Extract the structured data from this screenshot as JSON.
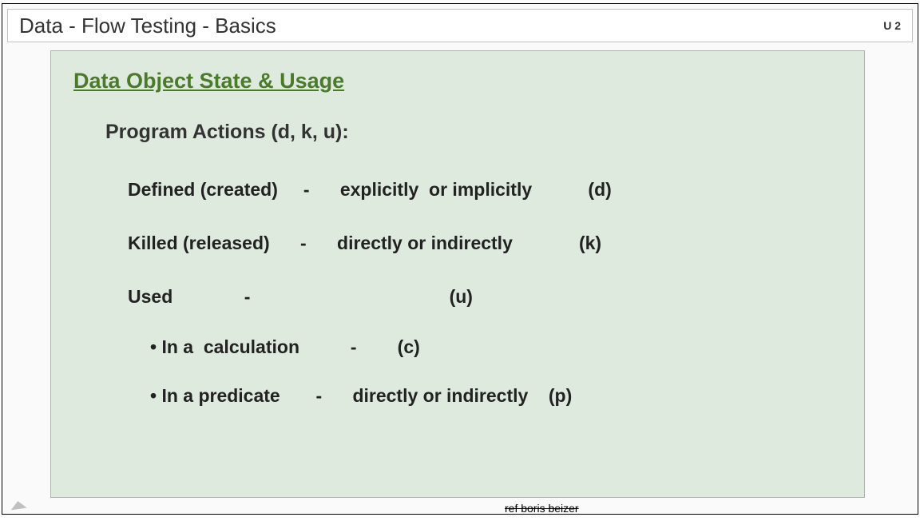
{
  "header": {
    "title": "Data - Flow Testing   -  Basics",
    "unit": "U 2"
  },
  "card": {
    "section_title": "Data Object State  & Usage",
    "subheading": "Program Actions   (d, k, u):",
    "rows": {
      "defined": "Defined (created)     -      explicitly  or implicitly           (d)",
      "killed": "Killed (released)      -      directly or indirectly             (k)",
      "used": "Used              -                                       (u)",
      "calc": "• In a  calculation          -        (c)",
      "pred": "• In a predicate       -      directly or indirectly    (p)"
    }
  },
  "footer_overflow": "ref boris beizer",
  "colors": {
    "card_bg": "#dfeadf",
    "section_title": "#4a7a2a",
    "header_text": "#333333"
  }
}
